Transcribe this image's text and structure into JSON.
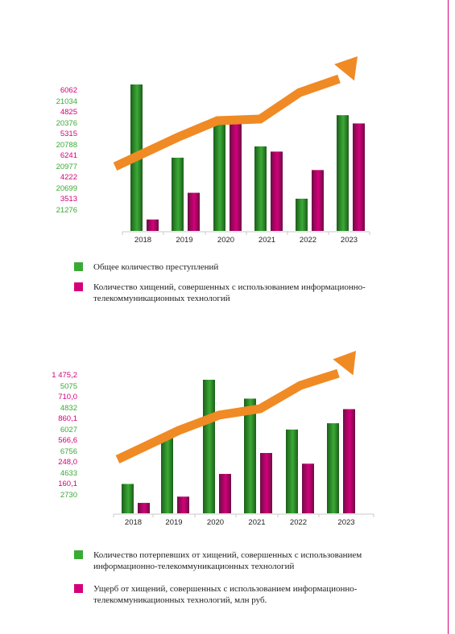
{
  "colors": {
    "green": "#3aaa35",
    "magenta": "#d4007a",
    "arrow": "#f08a24",
    "axis": "#c8c8c8"
  },
  "chart_data": [
    {
      "type": "bar",
      "categories": [
        "2018",
        "2019",
        "2020",
        "2021",
        "2022",
        "2023"
      ],
      "series": [
        {
          "name": "Общее количество преступлений",
          "values": [
            21276,
            20699,
            20977,
            20788,
            20376,
            21034
          ]
        },
        {
          "name": "Количество хищений, совершенных с использованием информационно-телекоммуникационных технологий",
          "values": [
            3513,
            4222,
            6241,
            5315,
            4825,
            6062
          ]
        }
      ],
      "tick_labels": [
        "6062",
        "21034",
        "4825",
        "20376",
        "5315",
        "20788",
        "6241",
        "20977",
        "4222",
        "20699",
        "3513",
        "21276"
      ],
      "grid": false,
      "legend_position": "bottom"
    },
    {
      "type": "bar",
      "categories": [
        "2018",
        "2019",
        "2020",
        "2021",
        "2022",
        "2023"
      ],
      "series": [
        {
          "name": "Количество потерпевших от хищений, совершенных с использованием информационно-телекоммуникационных технологий",
          "values": [
            2730,
            4633,
            6756,
            6027,
            4832,
            5075
          ]
        },
        {
          "name": "Ущерб от хищений, совершенных с использованием информационно-телекоммуникационных технологий, млн руб.",
          "values": [
            160.1,
            248.0,
            566.6,
            860.1,
            710.0,
            1475.2
          ]
        }
      ],
      "tick_labels": [
        "1 475,2",
        "5075",
        "710,0",
        "4832",
        "860,1",
        "6027",
        "566,6",
        "6756",
        "248,0",
        "4633",
        "160,1",
        "2730"
      ],
      "grid": false,
      "legend_position": "bottom"
    }
  ]
}
